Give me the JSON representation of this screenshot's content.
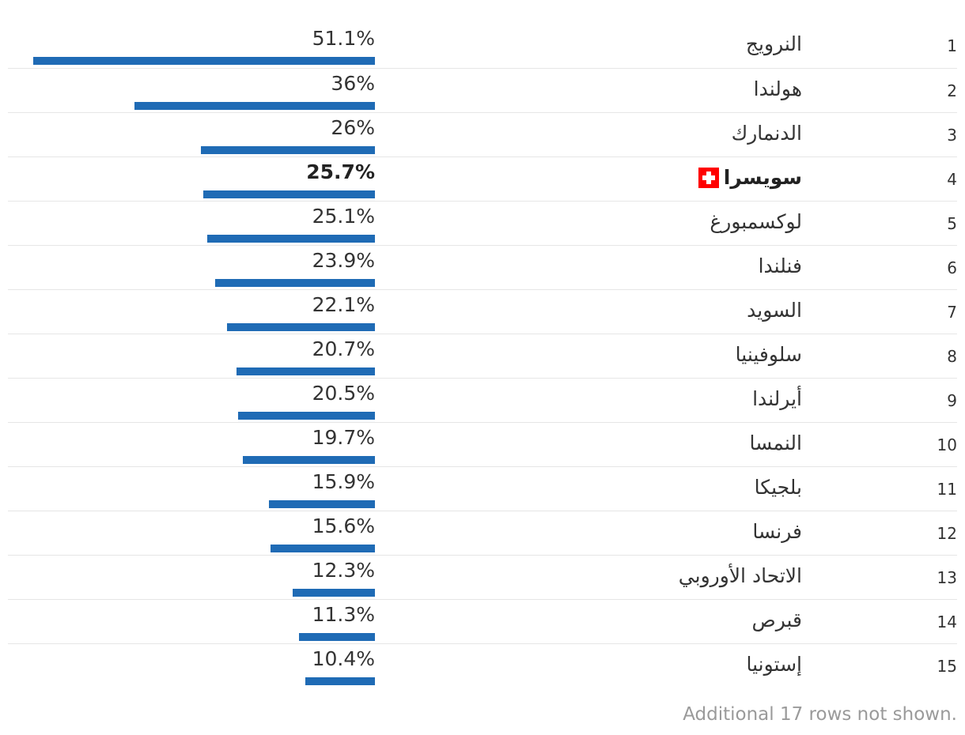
{
  "chart_data": {
    "type": "bar",
    "orientation": "horizontal",
    "bar_color": "#1f6bb5",
    "highlight_flag_color": "#ff0000",
    "value_max": 51.1,
    "rows": [
      {
        "rank": "1",
        "country": "النرويج",
        "value": 51.1,
        "label": "51.1%"
      },
      {
        "rank": "2",
        "country": "هولندا",
        "value": 36,
        "label": "36%"
      },
      {
        "rank": "3",
        "country": "الدنمارك",
        "value": 26,
        "label": "26%"
      },
      {
        "rank": "4",
        "country": "سويسرا",
        "value": 25.7,
        "label": "25.7%",
        "highlight": true,
        "flag": "swiss-flag-icon"
      },
      {
        "rank": "5",
        "country": "لوكسمبورغ",
        "value": 25.1,
        "label": "25.1%"
      },
      {
        "rank": "6",
        "country": "فنلندا",
        "value": 23.9,
        "label": "23.9%"
      },
      {
        "rank": "7",
        "country": "السويد",
        "value": 22.1,
        "label": "22.1%"
      },
      {
        "rank": "8",
        "country": "سلوفينيا",
        "value": 20.7,
        "label": "20.7%"
      },
      {
        "rank": "9",
        "country": "أيرلندا",
        "value": 20.5,
        "label": "20.5%"
      },
      {
        "rank": "10",
        "country": "النمسا",
        "value": 19.7,
        "label": "19.7%"
      },
      {
        "rank": "11",
        "country": "بلجيكا",
        "value": 15.9,
        "label": "15.9%"
      },
      {
        "rank": "12",
        "country": "فرنسا",
        "value": 15.6,
        "label": "15.6%"
      },
      {
        "rank": "13",
        "country": "الاتحاد الأوروبي",
        "value": 12.3,
        "label": "12.3%"
      },
      {
        "rank": "14",
        "country": "قبرص",
        "value": 11.3,
        "label": "11.3%"
      },
      {
        "rank": "15",
        "country": "إستونيا",
        "value": 10.4,
        "label": "10.4%"
      }
    ]
  },
  "footnote": "Additional 17 rows not shown."
}
